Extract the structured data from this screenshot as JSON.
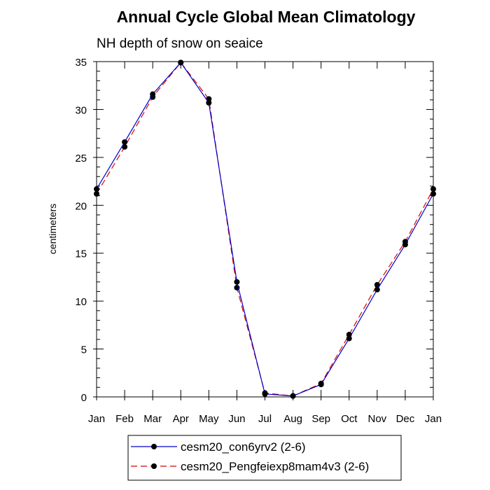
{
  "chart_data": {
    "type": "line",
    "title": "Annual Cycle Global Mean Climatology",
    "subtitle": "NH depth of snow on seaice",
    "xlabel": "",
    "ylabel": "centimeters",
    "categories": [
      "Jan",
      "Feb",
      "Mar",
      "Apr",
      "May",
      "Jun",
      "Jul",
      "Aug",
      "Sep",
      "Oct",
      "Nov",
      "Dec",
      "Jan"
    ],
    "ylim": [
      0,
      35
    ],
    "yticks": [
      0,
      5,
      10,
      15,
      20,
      25,
      30,
      35
    ],
    "grid": false,
    "legend_position": "bottom",
    "series": [
      {
        "name": "cesm20_con6yrv2 (2-6)",
        "color": "#0000cc",
        "line_style": "solid",
        "values": [
          21.7,
          26.6,
          31.6,
          34.9,
          30.7,
          12.0,
          0.3,
          0.1,
          1.3,
          6.1,
          11.2,
          15.9,
          21.2
        ]
      },
      {
        "name": "cesm20_Pengfeiexp8mam4v3 (2-6)",
        "color": "#dd0000",
        "line_style": "dashed",
        "values": [
          21.2,
          26.1,
          31.3,
          34.9,
          31.1,
          11.4,
          0.4,
          0.1,
          1.4,
          6.5,
          11.7,
          16.2,
          21.7
        ]
      }
    ]
  }
}
